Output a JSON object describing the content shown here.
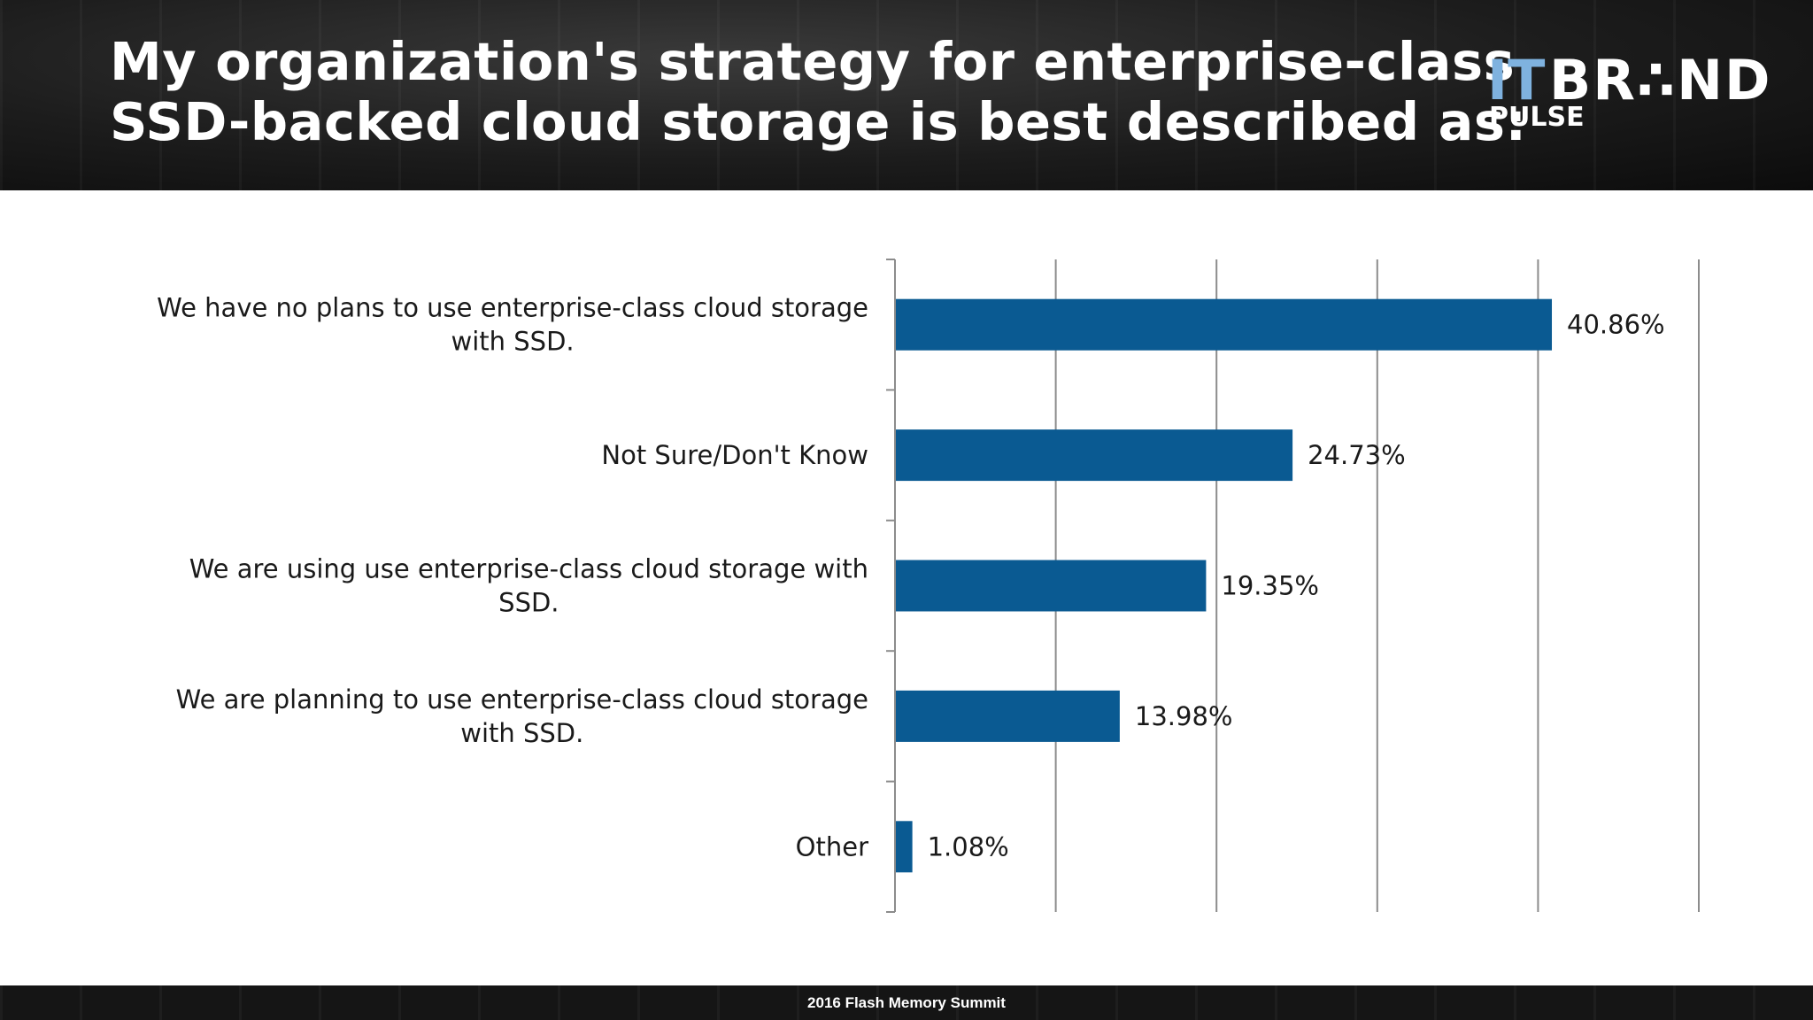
{
  "header": {
    "title_line1": "My organization's strategy for enterprise-class",
    "title_line2": "SSD-backed cloud storage is best described as:",
    "logo": {
      "it": "IT",
      "brand": "BR∴ND",
      "pulse": "PULSE"
    }
  },
  "footer": {
    "text": "2016 Flash Memory Summit"
  },
  "chart_data": {
    "type": "bar",
    "orientation": "horizontal",
    "categories": [
      [
        "We have no plans to use enterprise-class cloud storage",
        "with SSD."
      ],
      [
        "Not Sure/Don't Know"
      ],
      [
        "We are using use enterprise-class cloud storage with",
        "SSD."
      ],
      [
        "We are planning to use enterprise-class cloud storage",
        "with SSD."
      ],
      [
        "Other"
      ]
    ],
    "values": [
      40.86,
      24.73,
      19.35,
      13.98,
      1.08
    ],
    "labels": [
      "40.86%",
      "24.73%",
      "19.35%",
      "13.98%",
      "1.08%"
    ],
    "xlim": [
      0,
      50
    ],
    "gridlines": [
      10,
      20,
      30,
      40,
      50
    ],
    "grid": true,
    "bar_color": "#0a5a92",
    "title": "",
    "xlabel": "",
    "ylabel": ""
  },
  "colors": {
    "bar": "#0a5a92",
    "header_bg": "#1c1c1c",
    "logo_it": "#7fb2df"
  }
}
